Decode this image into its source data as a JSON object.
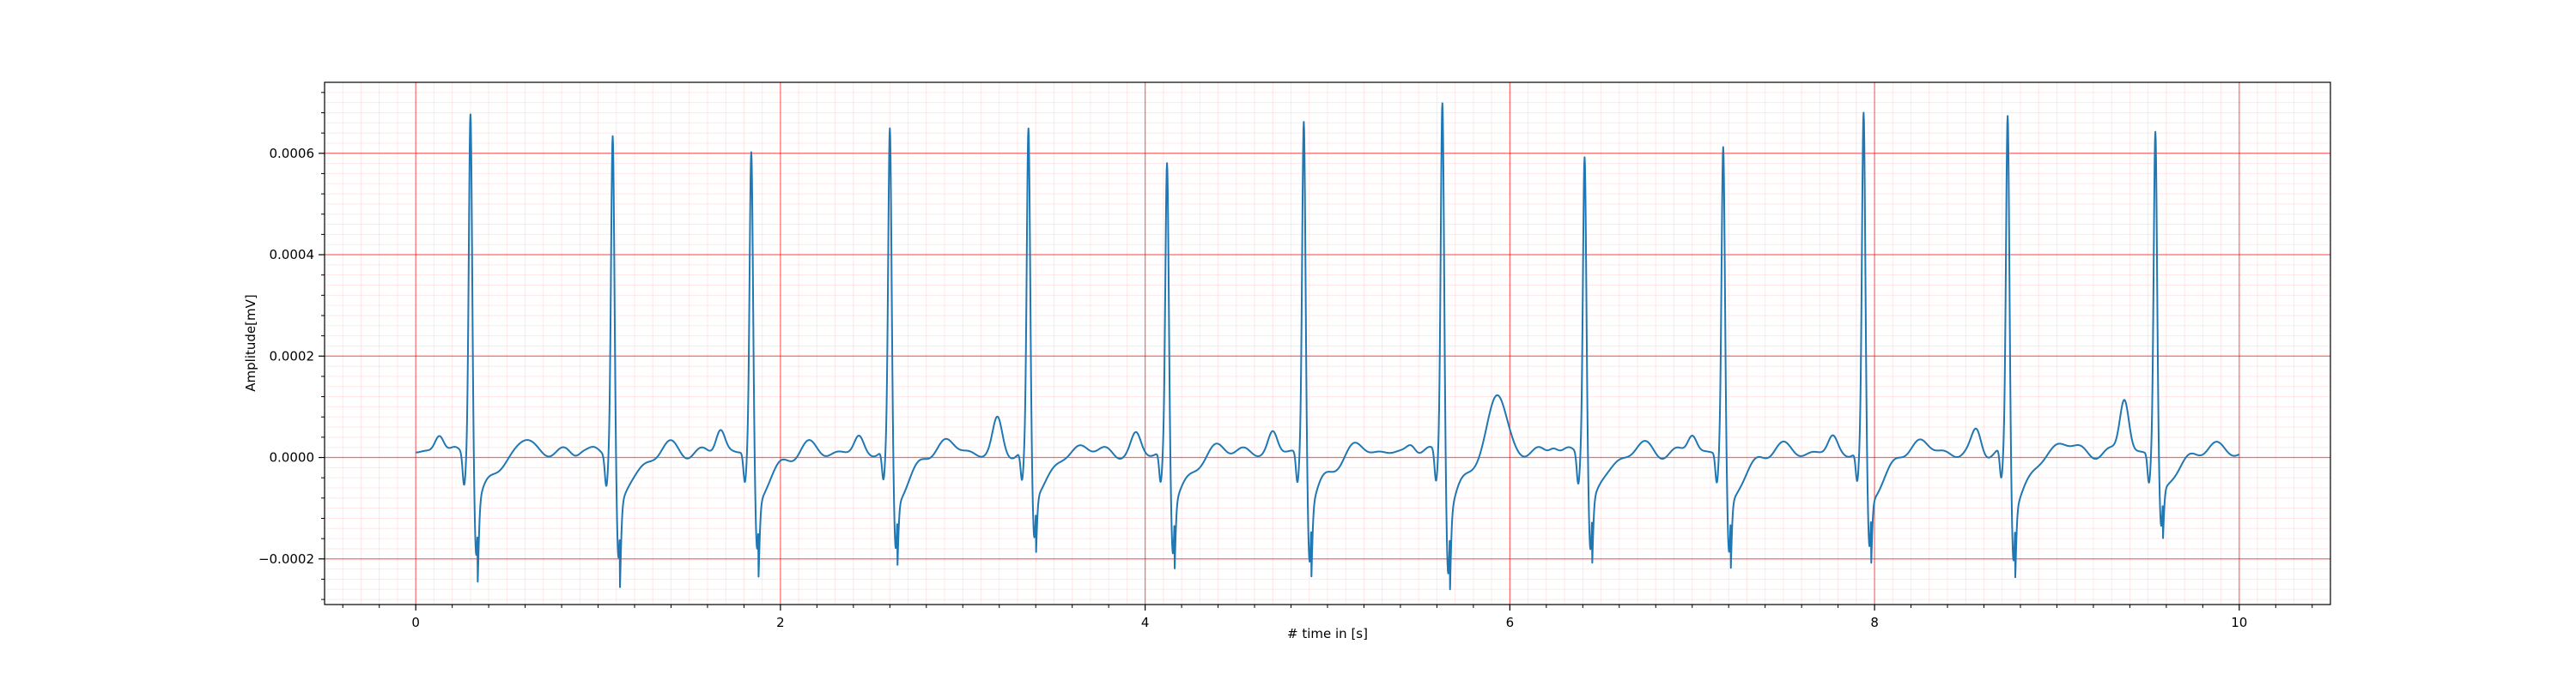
{
  "chart_data": {
    "type": "line",
    "title": "",
    "xlabel": "# time in [s]",
    "ylabel": "Amplitude[mV]",
    "xlim": [
      -0.5,
      10.5
    ],
    "ylim": [
      -0.00029,
      0.00074
    ],
    "x_ticks": [
      0,
      2,
      4,
      6,
      8,
      10
    ],
    "x_tick_labels": [
      "0",
      "2",
      "4",
      "6",
      "8",
      "10"
    ],
    "y_ticks": [
      -0.0002,
      0.0,
      0.0002,
      0.0004,
      0.0006
    ],
    "y_tick_labels": [
      "−0.0002",
      "0.0000",
      "0.0002",
      "0.0004",
      "0.0006"
    ],
    "grid": {
      "major": true,
      "minor": true,
      "color": "#ff0000"
    },
    "line_color": "#1f77b4",
    "series": [
      {
        "name": "",
        "beats": [
          {
            "t": 0.3,
            "r": 0.00068,
            "s": -0.0002,
            "p": 4e-05,
            "tw": 3e-05
          },
          {
            "t": 1.08,
            "r": 0.00063,
            "s": -0.00021,
            "p": 1e-05,
            "tw": 2e-05
          },
          {
            "t": 1.84,
            "r": 0.00059,
            "s": -0.00019,
            "p": 5e-05,
            "tw": 2e-05
          },
          {
            "t": 2.6,
            "r": 0.00063,
            "s": -0.00019,
            "p": 3e-05,
            "tw": 3e-05
          },
          {
            "t": 3.36,
            "r": 0.00063,
            "s": -0.00017,
            "p": 6e-05,
            "tw": 2e-05
          },
          {
            "t": 4.12,
            "r": 0.00057,
            "s": -0.0002,
            "p": 3e-05,
            "tw": 2e-05
          },
          {
            "t": 4.87,
            "r": 0.00066,
            "s": -0.00021,
            "p": 4e-05,
            "tw": 2e-05
          },
          {
            "t": 5.63,
            "r": 0.0007,
            "s": -0.00023,
            "p": 2e-05,
            "tw": 0.00012
          },
          {
            "t": 6.41,
            "r": 0.00059,
            "s": -0.00019,
            "p": 2e-05,
            "tw": 2e-05
          },
          {
            "t": 7.17,
            "r": 0.0006,
            "s": -0.0002,
            "p": 4e-05,
            "tw": 2e-05
          },
          {
            "t": 7.94,
            "r": 0.00066,
            "s": -0.00019,
            "p": 3e-05,
            "tw": 3e-05
          },
          {
            "t": 8.73,
            "r": 0.00066,
            "s": -0.00021,
            "p": 4e-05,
            "tw": 3e-05
          },
          {
            "t": 9.54,
            "r": 0.00063,
            "s": -0.00015,
            "p": 0.00011,
            "tw": 2e-05
          }
        ],
        "x_start": 0.0,
        "x_end": 10.0,
        "baseline": 1e-05
      }
    ]
  }
}
